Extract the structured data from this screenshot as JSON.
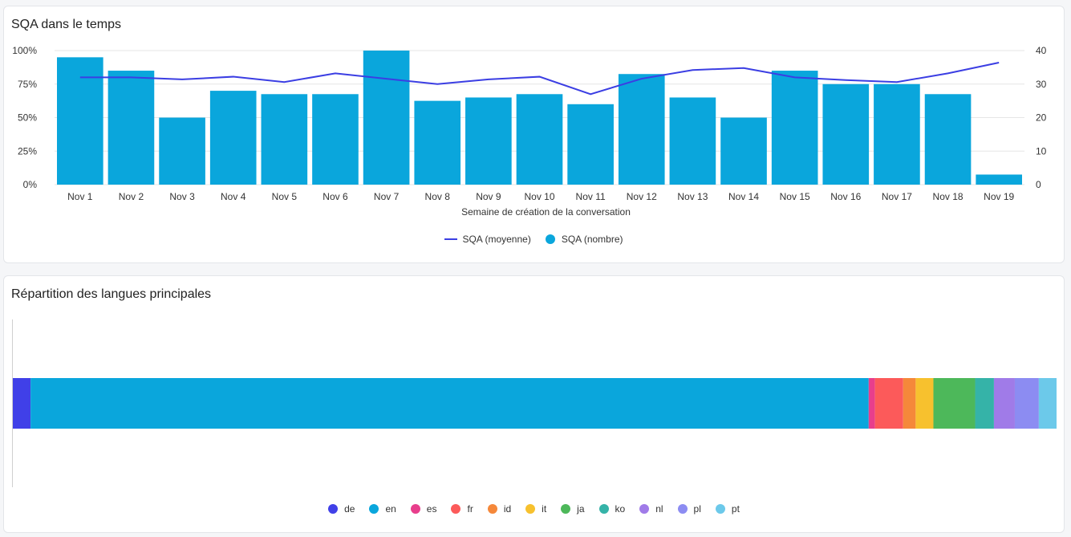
{
  "cards": {
    "sqa": {
      "title": "SQA dans le temps"
    },
    "langs": {
      "title": "Répartition des langues principales"
    }
  },
  "colors": {
    "bar": "#0aa6dc",
    "line": "#3b3ee3"
  },
  "chart_data": [
    {
      "type": "bar",
      "title": "SQA dans le temps",
      "xlabel": "Semaine de création de la conversation",
      "categories": [
        "Nov 1",
        "Nov 2",
        "Nov 3",
        "Nov 4",
        "Nov 5",
        "Nov 6",
        "Nov 7",
        "Nov 8",
        "Nov 9",
        "Nov 10",
        "Nov 11",
        "Nov 12",
        "Nov 13",
        "Nov 14",
        "Nov 15",
        "Nov 16",
        "Nov 17",
        "Nov 18",
        "Nov 19"
      ],
      "y_left": {
        "ticks": [
          "100%",
          "75%",
          "50%",
          "25%",
          "0%"
        ],
        "range": [
          0,
          100
        ]
      },
      "y_right": {
        "ticks": [
          "40",
          "30",
          "20",
          "10",
          "0"
        ],
        "range": [
          0,
          40
        ]
      },
      "grid": true,
      "legend_position": "bottom",
      "series": [
        {
          "name": "SQA (moyenne)",
          "type": "line",
          "axis": "left",
          "color": "#3b3ee3",
          "values": [
            80,
            80,
            78.5,
            80.5,
            76.5,
            83,
            79,
            75,
            78.5,
            80.5,
            67.5,
            79,
            85.5,
            87,
            80,
            78,
            76.5,
            83,
            91
          ]
        },
        {
          "name": "SQA (nombre)",
          "type": "bar",
          "axis": "right",
          "color": "#0aa6dc",
          "values": [
            38,
            34,
            20,
            28,
            27,
            27,
            40,
            25,
            26,
            27,
            24,
            33,
            26,
            20,
            34,
            30,
            30,
            27,
            3
          ]
        }
      ]
    },
    {
      "type": "bar",
      "subtype": "stacked-horizontal-100",
      "title": "Répartition des langues principales",
      "legend_position": "bottom",
      "series": [
        {
          "name": "de",
          "value": 1.7,
          "color": "#4040e8"
        },
        {
          "name": "en",
          "value": 80.3,
          "color": "#0aa6dc"
        },
        {
          "name": "es",
          "value": 0.6,
          "color": "#e83e8c"
        },
        {
          "name": "fr",
          "value": 2.7,
          "color": "#fc5a5a"
        },
        {
          "name": "id",
          "value": 1.2,
          "color": "#f5883a"
        },
        {
          "name": "it",
          "value": 1.7,
          "color": "#f7c12e"
        },
        {
          "name": "ja",
          "value": 4.0,
          "color": "#4db85a"
        },
        {
          "name": "ko",
          "value": 1.8,
          "color": "#35b3a8"
        },
        {
          "name": "nl",
          "value": 2.0,
          "color": "#a07be8"
        },
        {
          "name": "pl",
          "value": 2.3,
          "color": "#8c8cf2"
        },
        {
          "name": "pt",
          "value": 1.7,
          "color": "#6cc9ea"
        }
      ]
    }
  ]
}
